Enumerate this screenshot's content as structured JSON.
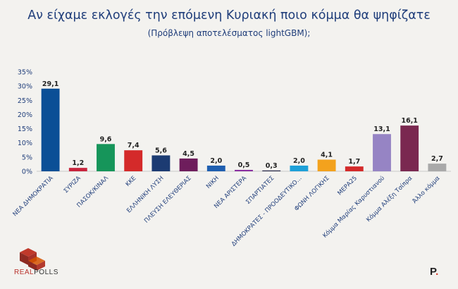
{
  "header": {
    "title": "Αν είχαμε εκλογές την επόμενη Κυριακή ποιο κόμμα θα ψηφίζατε",
    "subtitle": "(Πρόβλεψη αποτελέσματος lightGBM);"
  },
  "logos": {
    "realpolls_part1": "REAL",
    "realpolls_part2": "POLLS",
    "p_mark": "P",
    "p_dot": "."
  },
  "colors": {
    "background": "#f3f2ef",
    "title": "#1f3d7a",
    "axis_text": "#1f3d7a"
  },
  "chart_data": {
    "type": "bar",
    "ylim": [
      0,
      35
    ],
    "yticks": [
      0,
      5,
      10,
      15,
      20,
      25,
      30,
      35
    ],
    "ytick_format": "%",
    "grid": false,
    "categories": [
      "ΝΕΑ ΔΗΜΟΚΡΑΤΙΑ",
      "ΣΥΡΙΖΑ",
      "ΠΑΣΟΚ/ΚΙΝΑΛ",
      "ΚΚΕ",
      "ΕΛΛΗΝΙΚΗ ΛΥΣΗ",
      "ΠΛΕΥΣΗ ΕΛΕΥΘΕΡΙΑΣ",
      "ΝΙΚΗ",
      "ΝΕΑ ΑΡΙΣΤΕΡΑ",
      "ΣΠΑΡΤΙΑΤΕΣ",
      "ΔΗΜΟΚΡΑΤΕΣ - ΠΡΟΟΔΕΥΤΙΚΟ...",
      "ΦΩΝΗ ΛΟΓΙΚΗΣ",
      "ΜΕΡΑ25",
      "Κόμμα Μαρίας Καρυστιανού",
      "Κόμμα Αλέξη Τσίπρα",
      "Άλλο κόμμα"
    ],
    "values": [
      29.1,
      1.2,
      9.6,
      7.4,
      5.6,
      4.5,
      2.0,
      0.5,
      0.3,
      2.0,
      4.1,
      1.7,
      13.1,
      16.1,
      2.7
    ],
    "value_labels": [
      "29,1",
      "1,2",
      "9,6",
      "7,4",
      "5,6",
      "4,5",
      "2,0",
      "0,5",
      "0,3",
      "2,0",
      "4,1",
      "1,7",
      "13,1",
      "16,1",
      "2,7"
    ],
    "bar_colors": [
      "#0b4f96",
      "#c8243c",
      "#16955a",
      "#d42a2a",
      "#1c3b72",
      "#6e1d5c",
      "#1f5fb0",
      "#8a2fa0",
      "#2a2a4a",
      "#1ea0d8",
      "#f3a21d",
      "#d42a2a",
      "#9684c4",
      "#7a2850",
      "#a9a9a9"
    ]
  }
}
